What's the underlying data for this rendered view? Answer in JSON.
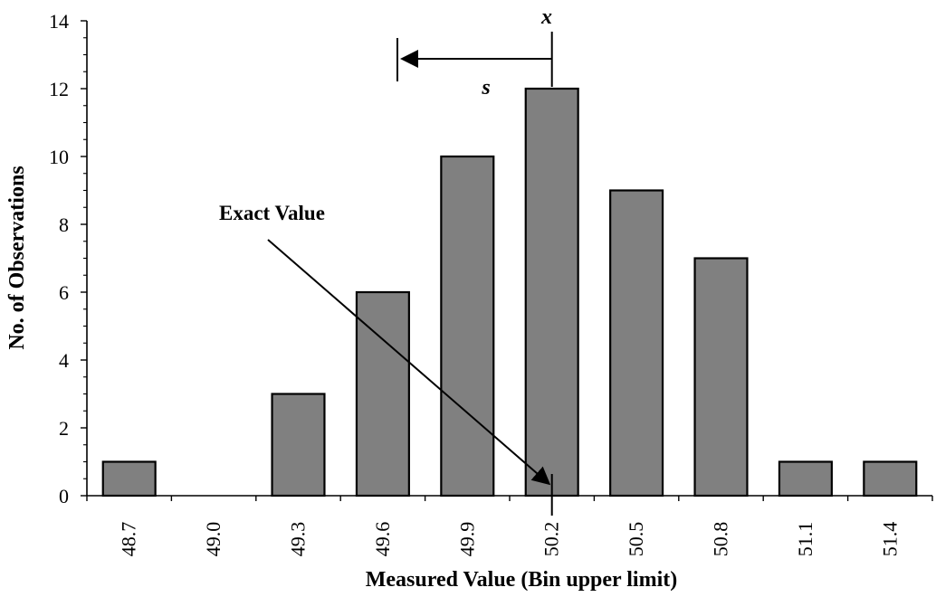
{
  "chart_data": {
    "type": "bar",
    "title": "",
    "xlabel": "Measured Value (Bin upper limit)",
    "ylabel": "No. of  Observations",
    "categories": [
      "48.7",
      "49.0",
      "49.3",
      "49.6",
      "49.9",
      "50.2",
      "50.5",
      "50.8",
      "51.1",
      "51.4"
    ],
    "values": [
      1,
      0,
      3,
      6,
      10,
      12,
      9,
      7,
      1,
      1
    ],
    "ylim": [
      0,
      14
    ],
    "yticks": [
      "0",
      "2",
      "4",
      "6",
      "8",
      "10",
      "12",
      "14"
    ],
    "grid": false,
    "legend": "none",
    "bar_color": "#808080",
    "bar_edge_color": "#000000",
    "annotations": {
      "exact_value_label": "Exact Value",
      "mean_label": "x",
      "std_label": "s",
      "mean_at": "50.2",
      "exact_value_at": "50.2"
    }
  }
}
